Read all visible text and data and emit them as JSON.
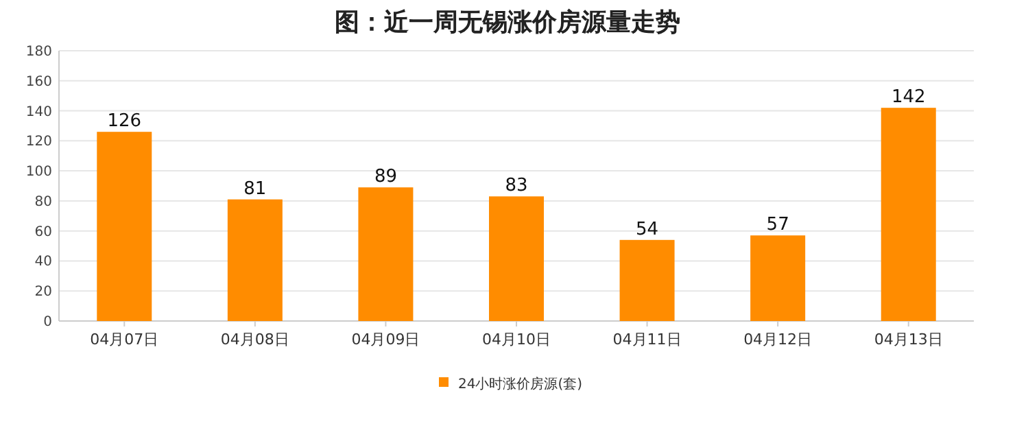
{
  "chart_data": {
    "type": "bar",
    "title": "图：近一周无锡涨价房源量走势",
    "categories": [
      "04月07日",
      "04月08日",
      "04月09日",
      "04月10日",
      "04月11日",
      "04月12日",
      "04月13日"
    ],
    "series": [
      {
        "name": "24小时涨价房源(套)",
        "color": "#ff8c00",
        "values": [
          126,
          81,
          89,
          83,
          54,
          57,
          142
        ]
      }
    ],
    "ylim": [
      0,
      180
    ],
    "yticks": [
      0,
      20,
      40,
      60,
      80,
      100,
      120,
      140,
      160,
      180
    ],
    "grid": "y",
    "legend": "bottom",
    "data_labels": true
  }
}
